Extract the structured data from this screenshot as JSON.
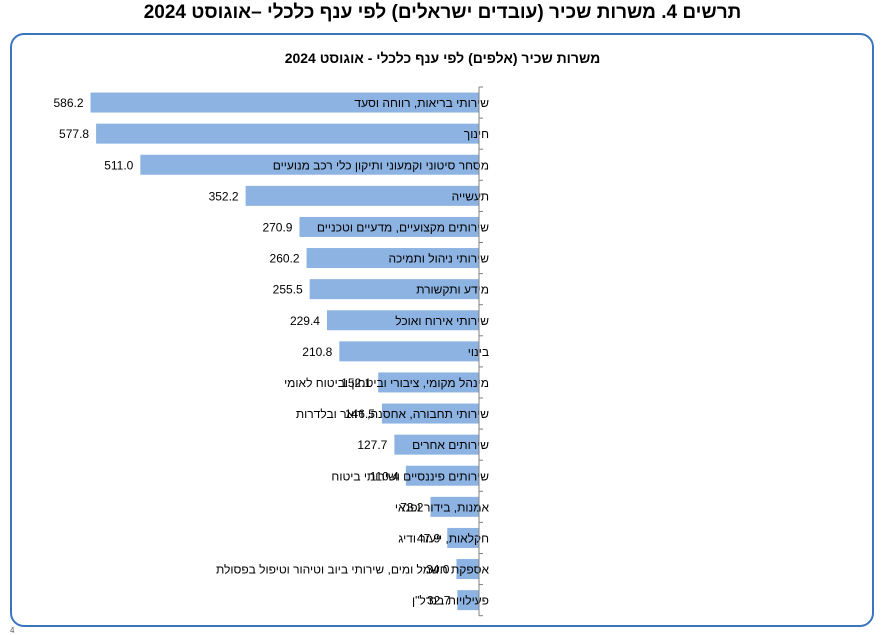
{
  "figure_title": "תרשים 4. משרות שכיר (עובדים ישראלים) לפי ענף כלכלי –אוגוסט 2024",
  "footnote": "4",
  "chart_data": {
    "type": "bar",
    "orientation": "horizontal",
    "title": "משרות שכיר (אלפים) לפי ענף כלכלי - אוגוסט 2024",
    "xlabel": "",
    "ylabel": "",
    "bar_color": "#8db3e2",
    "axis_color": "#808080",
    "xlim": [
      0,
      600
    ],
    "grid": false,
    "legend": "none",
    "categories": [
      "שירותי בריאות, רווחה וסעד",
      "חינוך",
      "מסחר סיטוני וקמעוני ותיקון כלי רכב מנועיים",
      "תעשייה",
      "שירותים מקצועיים, מדעיים וטכניים",
      "שירותי ניהול ותמיכה",
      "מידע ותקשורת",
      "שירותי אירוח ואוכל",
      "בינוי",
      "מינהל מקומי, ציבורי וביטחון וביטוח לאומי",
      "שירותי תחבורה, אחסנה, דואר ובלדרות",
      "שירותים אחרים",
      "שירותים פיננסיים ושירותי ביטוח",
      "אמנות, בידור ופנאי",
      "חקלאות, ייעור ודיג",
      "אספקת חשמל ומים, שירותי ביוב וטיהור וטיפול בפסולת",
      "פעילויות בנדל\"ן"
    ],
    "values": [
      586.2,
      577.8,
      511.0,
      352.2,
      270.9,
      260.2,
      255.5,
      229.4,
      210.8,
      152.1,
      146.5,
      127.7,
      110.4,
      73.2,
      47.9,
      34.0,
      32.7
    ],
    "value_labels": [
      "586.2",
      "577.8",
      "511.0",
      "352.2",
      "270.9",
      "260.2",
      "255.5",
      "229.4",
      "210.8",
      "152.1",
      "146.5",
      "127.7",
      "110.4",
      "73.2",
      "47.9",
      "34.0",
      "32.7"
    ]
  }
}
